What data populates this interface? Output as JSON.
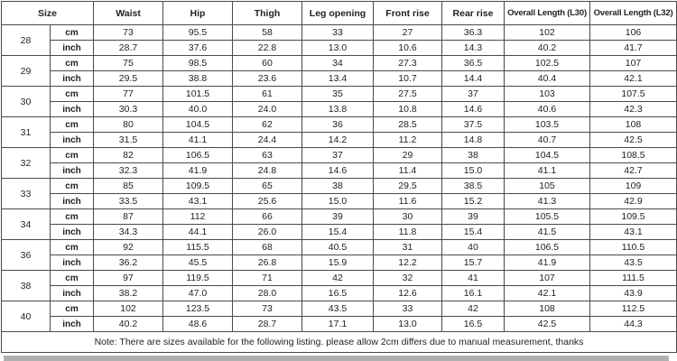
{
  "table": {
    "headers": [
      "Size",
      "Waist",
      "Hip",
      "Thigh",
      "Leg opening",
      "Front rise",
      "Rear rise",
      "Overall Length (L30)",
      "Overall Length (L32)"
    ],
    "unit_labels": [
      "cm",
      "inch"
    ],
    "rows": [
      {
        "size": "28",
        "cm": [
          "73",
          "95.5",
          "58",
          "33",
          "27",
          "36.3",
          "102",
          "106"
        ],
        "inch": [
          "28.7",
          "37.6",
          "22.8",
          "13.0",
          "10.6",
          "14.3",
          "40.2",
          "41.7"
        ]
      },
      {
        "size": "29",
        "cm": [
          "75",
          "98.5",
          "60",
          "34",
          "27.3",
          "36.5",
          "102.5",
          "107"
        ],
        "inch": [
          "29.5",
          "38.8",
          "23.6",
          "13.4",
          "10.7",
          "14.4",
          "40.4",
          "42.1"
        ]
      },
      {
        "size": "30",
        "cm": [
          "77",
          "101.5",
          "61",
          "35",
          "27.5",
          "37",
          "103",
          "107.5"
        ],
        "inch": [
          "30.3",
          "40.0",
          "24.0",
          "13.8",
          "10.8",
          "14.6",
          "40.6",
          "42.3"
        ]
      },
      {
        "size": "31",
        "cm": [
          "80",
          "104.5",
          "62",
          "36",
          "28.5",
          "37.5",
          "103.5",
          "108"
        ],
        "inch": [
          "31.5",
          "41.1",
          "24.4",
          "14.2",
          "11.2",
          "14.8",
          "40.7",
          "42.5"
        ]
      },
      {
        "size": "32",
        "cm": [
          "82",
          "106.5",
          "63",
          "37",
          "29",
          "38",
          "104.5",
          "108.5"
        ],
        "inch": [
          "32.3",
          "41.9",
          "24.8",
          "14.6",
          "11.4",
          "15.0",
          "41.1",
          "42.7"
        ]
      },
      {
        "size": "33",
        "cm": [
          "85",
          "109.5",
          "65",
          "38",
          "29.5",
          "38.5",
          "105",
          "109"
        ],
        "inch": [
          "33.5",
          "43.1",
          "25.6",
          "15.0",
          "11.6",
          "15.2",
          "41.3",
          "42.9"
        ]
      },
      {
        "size": "34",
        "cm": [
          "87",
          "112",
          "66",
          "39",
          "30",
          "39",
          "105.5",
          "109.5"
        ],
        "inch": [
          "34.3",
          "44.1",
          "26.0",
          "15.4",
          "11.8",
          "15.4",
          "41.5",
          "43.1"
        ]
      },
      {
        "size": "36",
        "cm": [
          "92",
          "115.5",
          "68",
          "40.5",
          "31",
          "40",
          "106.5",
          "110.5"
        ],
        "inch": [
          "36.2",
          "45.5",
          "26.8",
          "15.9",
          "12.2",
          "15.7",
          "41.9",
          "43.5"
        ]
      },
      {
        "size": "38",
        "cm": [
          "97",
          "119.5",
          "71",
          "42",
          "32",
          "41",
          "107",
          "111.5"
        ],
        "inch": [
          "38.2",
          "47.0",
          "28.0",
          "16.5",
          "12.6",
          "16.1",
          "42.1",
          "43.9"
        ]
      },
      {
        "size": "40",
        "cm": [
          "102",
          "123.5",
          "73",
          "43.5",
          "33",
          "42",
          "108",
          "112.5"
        ],
        "inch": [
          "40.2",
          "48.6",
          "28.7",
          "17.1",
          "13.0",
          "16.5",
          "42.5",
          "44.3"
        ]
      }
    ]
  },
  "note": "Note: There are sizes available for the following listing. please allow 2cm differs due to manual measurement, thanks",
  "colors": {
    "border": "#4a4a4a",
    "text": "#1f1f1f",
    "background": "#ffffff",
    "bottom_strip": "#b0b0b0"
  }
}
